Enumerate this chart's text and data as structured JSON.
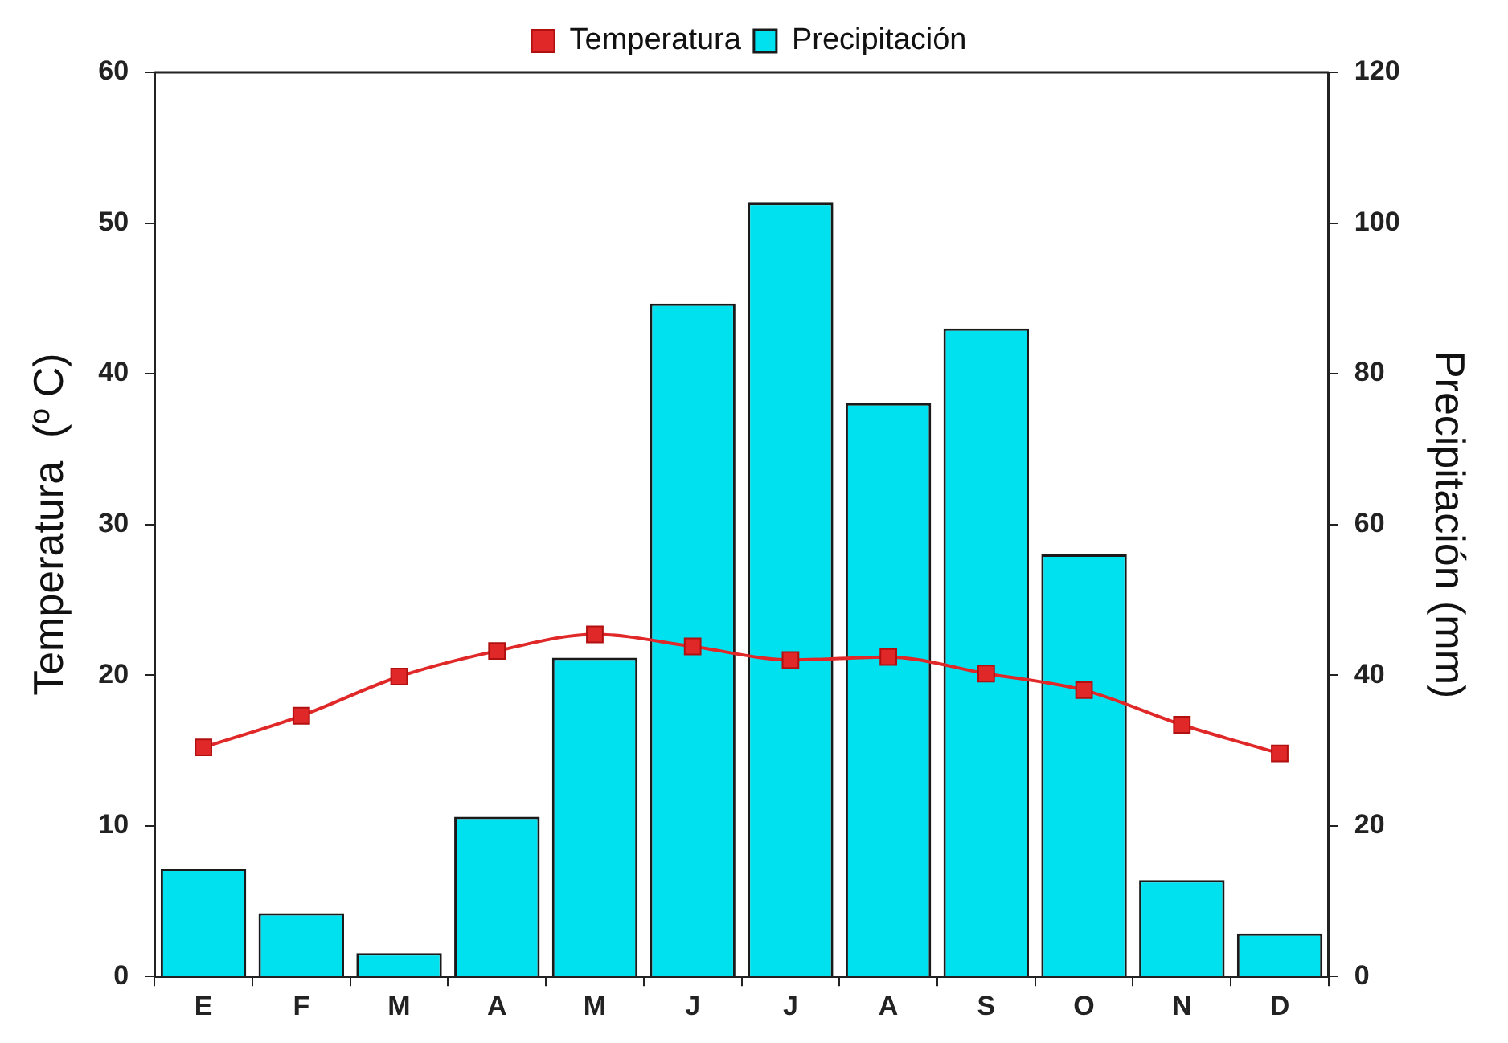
{
  "chart_data": {
    "type": "bar",
    "categories": [
      "E",
      "F",
      "M",
      "A",
      "M",
      "J",
      "J",
      "A",
      "S",
      "O",
      "N",
      "D"
    ],
    "ylabel": "Temperatura  (º C)",
    "y2label": "Precipitación (mm)",
    "series": [
      {
        "name": "Temperatura",
        "type": "line",
        "color": "#e02828",
        "axis": "y",
        "marker": "square",
        "values": [
          15.2,
          17.3,
          19.9,
          21.6,
          22.7,
          21.9,
          21.0,
          21.2,
          20.1,
          19.0,
          16.7,
          14.8
        ]
      },
      {
        "name": "Precipitación",
        "color": "#00e1f0",
        "axis": "y2",
        "values": [
          14.3,
          8.4,
          3.1,
          21.2,
          42.3,
          89.3,
          102.7,
          76.1,
          86,
          56,
          12.8,
          5.7
        ]
      }
    ],
    "ylim": [
      0,
      60
    ],
    "yticks": [
      0,
      10,
      20,
      30,
      40,
      50,
      60
    ],
    "y2lim": [
      0,
      120
    ],
    "y2ticks": [
      0,
      20,
      40,
      60,
      80,
      100,
      120
    ],
    "grid": false,
    "legend": "top"
  }
}
